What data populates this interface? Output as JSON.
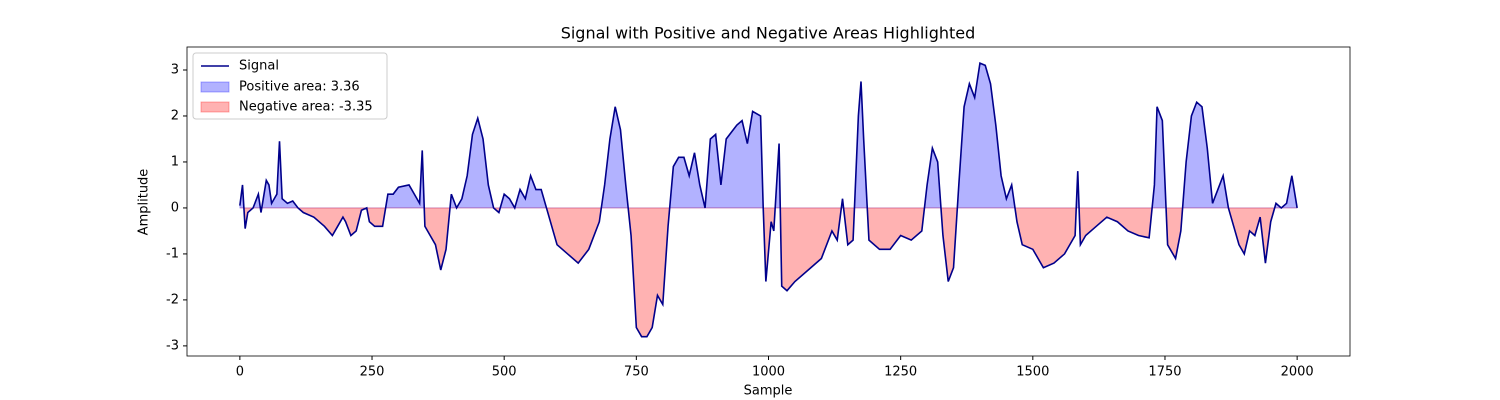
{
  "chart_data": {
    "type": "line",
    "title": "Signal with Positive and Negative Areas Highlighted",
    "xlabel": "Sample",
    "ylabel": "Amplitude",
    "x": [
      0,
      5,
      10,
      15,
      25,
      35,
      40,
      50,
      55,
      60,
      70,
      75,
      80,
      90,
      100,
      110,
      120,
      140,
      160,
      175,
      185,
      195,
      200,
      210,
      220,
      230,
      240,
      245,
      255,
      270,
      280,
      290,
      300,
      320,
      330,
      340,
      345,
      350,
      360,
      370,
      380,
      390,
      400,
      410,
      420,
      430,
      440,
      450,
      460,
      470,
      480,
      490,
      500,
      510,
      520,
      530,
      540,
      550,
      560,
      570,
      580,
      600,
      620,
      640,
      660,
      680,
      690,
      700,
      710,
      720,
      730,
      740,
      745,
      750,
      760,
      770,
      780,
      790,
      800,
      810,
      820,
      830,
      840,
      850,
      860,
      870,
      880,
      890,
      900,
      910,
      920,
      940,
      950,
      960,
      970,
      985,
      990,
      995,
      1005,
      1010,
      1020,
      1025,
      1035,
      1050,
      1080,
      1100,
      1120,
      1130,
      1140,
      1150,
      1160,
      1170,
      1175,
      1180,
      1190,
      1210,
      1230,
      1250,
      1270,
      1290,
      1300,
      1310,
      1320,
      1330,
      1340,
      1350,
      1360,
      1370,
      1380,
      1390,
      1400,
      1410,
      1420,
      1430,
      1440,
      1450,
      1460,
      1470,
      1480,
      1500,
      1520,
      1540,
      1560,
      1580,
      1585,
      1590,
      1600,
      1620,
      1640,
      1660,
      1680,
      1700,
      1720,
      1730,
      1735,
      1745,
      1755,
      1770,
      1780,
      1790,
      1800,
      1810,
      1820,
      1830,
      1840,
      1850,
      1860,
      1870,
      1880,
      1890,
      1900,
      1910,
      1920,
      1930,
      1940,
      1950,
      1960,
      1970,
      1980,
      1990,
      2000
    ],
    "series": [
      {
        "name": "Signal",
        "color": "#00008b",
        "values": [
          0.05,
          0.5,
          -0.45,
          -0.1,
          0.0,
          0.3,
          -0.1,
          0.6,
          0.5,
          0.1,
          0.3,
          1.45,
          0.2,
          0.1,
          0.15,
          0.0,
          -0.1,
          -0.2,
          -0.4,
          -0.6,
          -0.4,
          -0.2,
          -0.3,
          -0.6,
          -0.5,
          -0.05,
          0.0,
          -0.3,
          -0.4,
          -0.4,
          0.3,
          0.3,
          0.45,
          0.5,
          0.3,
          0.1,
          1.25,
          -0.4,
          -0.6,
          -0.8,
          -1.35,
          -0.9,
          0.3,
          0.0,
          0.2,
          0.7,
          1.6,
          1.95,
          1.5,
          0.5,
          0.0,
          -0.1,
          0.3,
          0.2,
          0.0,
          0.4,
          0.2,
          0.7,
          0.4,
          0.4,
          0.0,
          -0.8,
          -1.0,
          -1.2,
          -0.9,
          -0.3,
          0.5,
          1.5,
          2.2,
          1.7,
          0.5,
          -0.6,
          -1.6,
          -2.6,
          -2.8,
          -2.8,
          -2.6,
          -1.9,
          -2.1,
          -0.4,
          0.9,
          1.1,
          1.1,
          0.7,
          1.2,
          0.5,
          0.0,
          1.5,
          1.6,
          0.5,
          1.5,
          1.8,
          1.9,
          1.4,
          2.1,
          2.0,
          0.0,
          -1.6,
          -0.3,
          -0.5,
          1.4,
          -1.7,
          -1.8,
          -1.6,
          -1.3,
          -1.1,
          -0.5,
          -0.7,
          0.2,
          -0.8,
          -0.7,
          2.0,
          2.75,
          1.5,
          -0.7,
          -0.9,
          -0.9,
          -0.6,
          -0.7,
          -0.5,
          0.5,
          1.3,
          1.0,
          -0.6,
          -1.6,
          -1.3,
          0.5,
          2.2,
          2.7,
          2.4,
          3.15,
          3.1,
          2.7,
          1.8,
          0.7,
          0.2,
          0.5,
          -0.3,
          -0.8,
          -0.9,
          -1.3,
          -1.2,
          -1.0,
          -0.6,
          0.8,
          -0.8,
          -0.6,
          -0.4,
          -0.2,
          -0.3,
          -0.5,
          -0.6,
          -0.65,
          0.5,
          2.2,
          1.9,
          -0.8,
          -1.1,
          -0.5,
          1.0,
          2.0,
          2.3,
          2.2,
          1.3,
          0.1,
          0.4,
          0.7,
          0.0,
          -0.4,
          -0.8,
          -1.0,
          -0.5,
          -0.6,
          -0.2,
          -1.2,
          -0.3,
          0.1,
          0.0,
          0.1,
          0.7,
          0.0
        ]
      }
    ],
    "areas": [
      {
        "name": "Positive area: 3.36",
        "color": "#0000ff"
      },
      {
        "name": "Negative area: -3.35",
        "color": "#ff0000"
      }
    ],
    "xlim": [
      -100,
      2100
    ],
    "ylim": [
      -3.22,
      3.5
    ],
    "xticks": [
      0,
      250,
      500,
      750,
      1000,
      1250,
      1500,
      1750,
      2000
    ],
    "yticks": [
      -3,
      -2,
      -1,
      0,
      1,
      2,
      3
    ],
    "legend": "upper left"
  }
}
